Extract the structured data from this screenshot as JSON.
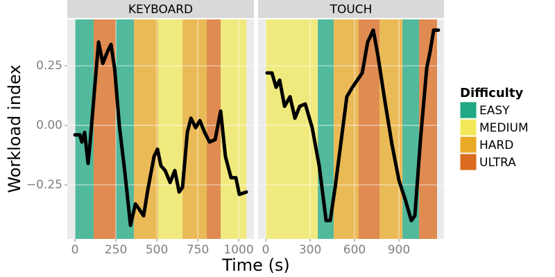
{
  "chart_data": {
    "type": "faceted-line",
    "ylabel": "Workload index",
    "xlabel": "Time (s)",
    "ylim": [
      -0.477,
      0.445
    ],
    "yticks": [
      {
        "value": -0.25,
        "label": "−0.25"
      },
      {
        "value": 0,
        "label": "0.00"
      },
      {
        "value": 0.25,
        "label": "0.25"
      }
    ],
    "grid": true,
    "line_color": "#000000",
    "legend": {
      "title": "Difficulty",
      "position": "right",
      "levels": [
        "EASY",
        "MEDIUM",
        "HARD",
        "ULTRA"
      ],
      "colors": [
        "#1fa883",
        "#f2e85a",
        "#e9aa25",
        "#db6b1e"
      ]
    },
    "facets": [
      {
        "title": "KEYBOARD",
        "xlim": [
          -47,
          1093
        ],
        "xticks": [
          0,
          250,
          500,
          750,
          1000
        ],
        "bands": [
          {
            "start": 0,
            "end": 114,
            "level": "EASY"
          },
          {
            "start": 114,
            "end": 250,
            "level": "ULTRA"
          },
          {
            "start": 250,
            "end": 360,
            "level": "EASY"
          },
          {
            "start": 360,
            "end": 508,
            "level": "HARD"
          },
          {
            "start": 508,
            "end": 657,
            "level": "MEDIUM"
          },
          {
            "start": 657,
            "end": 805,
            "level": "HARD"
          },
          {
            "start": 805,
            "end": 890,
            "level": "ULTRA"
          },
          {
            "start": 890,
            "end": 1047,
            "level": "MEDIUM"
          }
        ],
        "x": [
          0,
          30,
          42,
          59,
          80,
          93,
          123,
          144,
          170,
          199,
          220,
          242,
          271,
          305,
          339,
          369,
          390,
          419,
          445,
          483,
          504,
          525,
          551,
          581,
          610,
          636,
          657,
          686,
          708,
          737,
          763,
          792,
          822,
          856,
          890,
          919,
          953,
          983,
          1004,
          1047
        ],
        "values": [
          -0.04,
          -0.04,
          -0.07,
          -0.03,
          -0.16,
          -0.07,
          0.18,
          0.35,
          0.26,
          0.31,
          0.34,
          0.24,
          0.0,
          -0.2,
          -0.42,
          -0.33,
          -0.35,
          -0.38,
          -0.27,
          -0.13,
          -0.1,
          -0.17,
          -0.19,
          -0.24,
          -0.19,
          -0.28,
          -0.26,
          -0.03,
          0.03,
          -0.01,
          0.02,
          -0.03,
          -0.07,
          -0.06,
          0.06,
          -0.13,
          -0.22,
          -0.22,
          -0.29,
          -0.28
        ]
      },
      {
        "title": "TOUCH",
        "xlim": [
          -52,
          1205
        ],
        "xticks": [
          0,
          300,
          600,
          900
        ],
        "bands": [
          {
            "start": 0,
            "end": 352,
            "level": "MEDIUM"
          },
          {
            "start": 352,
            "end": 459,
            "level": "EASY"
          },
          {
            "start": 459,
            "end": 628,
            "level": "HARD"
          },
          {
            "start": 628,
            "end": 769,
            "level": "ULTRA"
          },
          {
            "start": 769,
            "end": 924,
            "level": "HARD"
          },
          {
            "start": 924,
            "end": 1036,
            "level": "EASY"
          },
          {
            "start": 1036,
            "end": 1158,
            "level": "ULTRA"
          }
        ],
        "x": [
          9,
          42,
          70,
          94,
          127,
          164,
          197,
          230,
          267,
          314,
          361,
          408,
          436,
          469,
          511,
          548,
          586,
          619,
          652,
          689,
          727,
          759,
          806,
          853,
          900,
          947,
          984,
          1008,
          1046,
          1088,
          1111,
          1135,
          1167
        ],
        "values": [
          0.22,
          0.22,
          0.16,
          0.19,
          0.08,
          0.12,
          0.03,
          0.08,
          0.09,
          -0.01,
          -0.17,
          -0.4,
          -0.4,
          -0.26,
          -0.06,
          0.12,
          0.16,
          0.19,
          0.22,
          0.35,
          0.4,
          0.29,
          0.1,
          -0.08,
          -0.23,
          -0.32,
          -0.4,
          -0.38,
          -0.06,
          0.24,
          0.31,
          0.4,
          0.4
        ]
      }
    ]
  }
}
